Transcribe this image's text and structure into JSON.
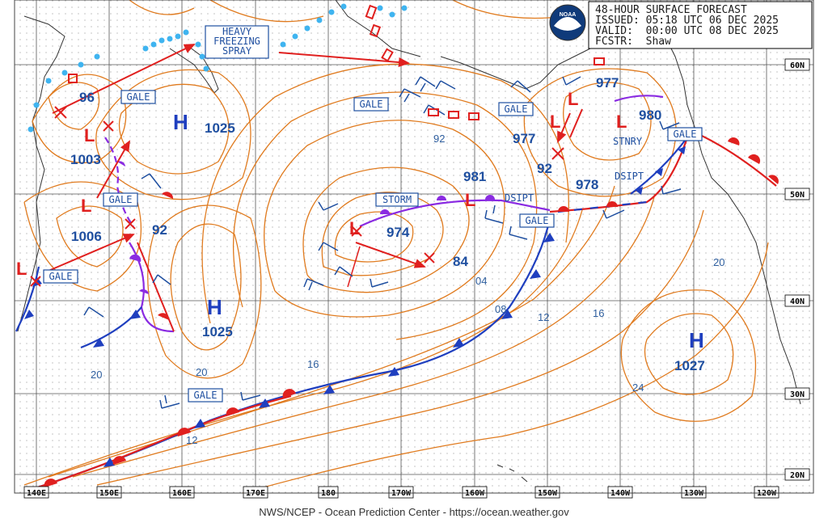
{
  "header": {
    "line1": "48-HOUR SURFACE FORECAST",
    "line2": "ISSUED: 05:18 UTC 06 DEC 2025",
    "line3": "VALID:  00:00 UTC 08 DEC 2025",
    "line4": "FCSTR:  Shaw",
    "logo_text": "NOAA"
  },
  "footer": "NWS/NCEP - Ocean Prediction Center - https://ocean.weather.gov",
  "longitude_labels": [
    "140E",
    "150E",
    "160E",
    "170E",
    "180",
    "170W",
    "160W",
    "150W",
    "140W",
    "130W",
    "120W"
  ],
  "latitude_labels": [
    "60N",
    "50N",
    "40N",
    "30N",
    "20N"
  ],
  "pressure_labels": {
    "p977a": "977",
    "p980": "980",
    "p977b": "977",
    "p92a": "92",
    "p978": "978",
    "p981": "981",
    "p974": "974",
    "p84": "84",
    "p96": "96",
    "p1003": "1003",
    "p1006": "1006",
    "p92b": "92",
    "p1025a": "1025",
    "p1025b": "1025",
    "p1027": "1027"
  },
  "highs": {
    "h1": "H",
    "h2": "H",
    "h3": "H"
  },
  "isobar_labels": {
    "i92": "92",
    "i04": "04",
    "i08": "08",
    "i12a": "12",
    "i16a": "16",
    "i20a": "20",
    "i24": "24",
    "i16b": "16",
    "i20b": "20",
    "i20c": "20",
    "i12b": "12"
  },
  "warnings": {
    "heavy1": "HEAVY",
    "heavy2": "FREEZING",
    "heavy3": "SPRAY",
    "gale1": "GALE",
    "gale2": "GALE",
    "gale3": "GALE",
    "gale4": "GALE",
    "gale5": "GALE",
    "gale6": "GALE",
    "gale7": "GALE",
    "gale8": "GALE",
    "storm": "STORM"
  },
  "annotations": {
    "stnry": "STNRY",
    "dsipt1": "DSIPT",
    "dsipt2": "DSIPT"
  },
  "colors": {
    "isobar": "#e07b1f",
    "front_cold": "#1f3fbf",
    "front_warm": "#e0201f",
    "occluded": "#8a2be2",
    "ice": "#3fb4f0",
    "text_blue": "#1f4fa0",
    "grid": "#555555"
  }
}
